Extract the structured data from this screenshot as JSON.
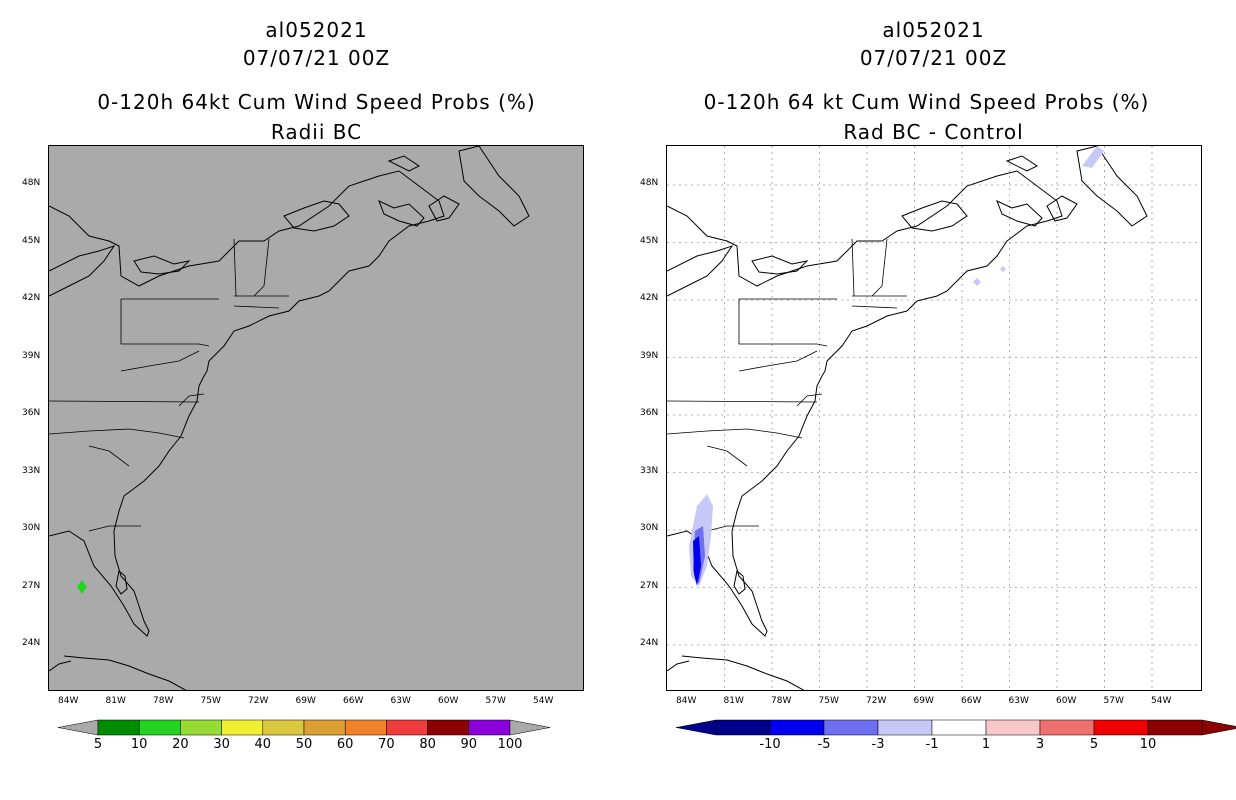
{
  "left_panel": {
    "storm_id": "al052021",
    "datetime": "07/07/21 00Z",
    "product": "0-120h 64kt Cum Wind Speed Probs (%)",
    "subtitle": "Radii BC",
    "lat_labels": [
      "48N",
      "45N",
      "42N",
      "39N",
      "36N",
      "33N",
      "30N",
      "27N",
      "24N"
    ],
    "lon_labels": [
      "84W",
      "81W",
      "78W",
      "75W",
      "72W",
      "69W",
      "66W",
      "63W",
      "60W",
      "57W",
      "54W"
    ],
    "colorbar": {
      "colors": [
        "#008c00",
        "#22d322",
        "#96dc32",
        "#f0f032",
        "#dcc83c",
        "#dca032",
        "#f08228",
        "#f03c3c",
        "#8c0000",
        "#8c00dc"
      ],
      "labels": [
        "5",
        "10",
        "20",
        "30",
        "40",
        "50",
        "60",
        "70",
        "80",
        "90",
        "100"
      ]
    }
  },
  "right_panel": {
    "storm_id": "al052021",
    "datetime": "07/07/21 00Z",
    "product": "0-120h 64 kt Cum Wind Speed Probs (%)",
    "subtitle": "Rad BC - Control",
    "lat_labels": [
      "48N",
      "45N",
      "42N",
      "39N",
      "36N",
      "33N",
      "30N",
      "27N",
      "24N"
    ],
    "lon_labels": [
      "84W",
      "81W",
      "78W",
      "75W",
      "72W",
      "69W",
      "66W",
      "63W",
      "60W",
      "57W",
      "54W"
    ],
    "colorbar": {
      "colors": [
        "#00008c",
        "#0000f0",
        "#6e6ef0",
        "#c8c8f8",
        "#ffffff",
        "#f8c8c8",
        "#f07070",
        "#f00000",
        "#8c0000"
      ],
      "labels": [
        "-10",
        "-5",
        "-3",
        "-1",
        "1",
        "3",
        "5",
        "10"
      ]
    }
  },
  "colors": {
    "land_background": "#aaaaaa",
    "diff_background": "#ffffff"
  }
}
